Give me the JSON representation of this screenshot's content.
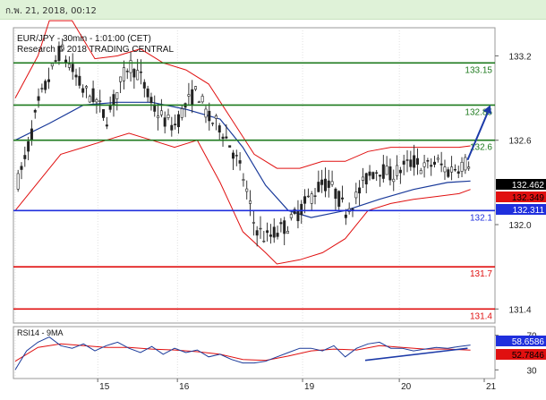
{
  "header": {
    "date_text": "ก.พ. 21, 2018, 00:12"
  },
  "colors": {
    "candles": "#222222",
    "bands": "#e01010",
    "ma": "#1a3a9a",
    "resistance": "#1e7a1e",
    "pivot": "#1f2fdd",
    "support": "#e01010",
    "arrow": "#1c3aa8",
    "rsi": "#1a3a9a",
    "rsi_ma": "#e01010",
    "grid": "#cccccc"
  },
  "chart_data": {
    "type": "candlestick",
    "symbol_line": "EUR/JPY - 30min - 1:01:00 (CET)",
    "research_line": "Research © 2018 TRADING CENTRAL",
    "x_ticks": [
      "15",
      "16",
      "19",
      "20",
      "21"
    ],
    "price_axis": {
      "ylim": [
        131.3,
        133.4
      ],
      "ticks": [
        "133.2",
        "132.6",
        "132.0",
        "131.4"
      ]
    },
    "levels": [
      {
        "label": "133.15",
        "value": 133.15,
        "kind": "resistance"
      },
      {
        "label": "132.85",
        "value": 132.85,
        "kind": "resistance"
      },
      {
        "label": "132.6",
        "value": 132.6,
        "kind": "resistance"
      },
      {
        "label": "132.1",
        "value": 132.1,
        "kind": "pivot"
      },
      {
        "label": "131.7",
        "value": 131.7,
        "kind": "support"
      },
      {
        "label": "131.4",
        "value": 131.4,
        "kind": "support"
      }
    ],
    "price_tags": [
      {
        "label": "132.462",
        "value": 132.462,
        "bg": "#000000",
        "fg": "#ffffff"
      },
      {
        "label": "132.349",
        "value": 132.349,
        "bg": "#e01010",
        "fg": "#000000"
      },
      {
        "label": "132.311",
        "value": 132.311,
        "bg": "#1f2fdd",
        "fg": "#ffffff"
      }
    ],
    "price_path": [
      [
        0,
        132.25
      ],
      [
        2,
        132.5
      ],
      [
        4,
        132.85
      ],
      [
        6,
        133.05
      ],
      [
        8,
        133.25
      ],
      [
        10,
        133.1
      ],
      [
        12,
        132.95
      ],
      [
        14,
        132.9
      ],
      [
        16,
        132.75
      ],
      [
        18,
        132.95
      ],
      [
        20,
        133.15
      ],
      [
        22,
        133.05
      ],
      [
        24,
        132.85
      ],
      [
        26,
        132.75
      ],
      [
        28,
        132.7
      ],
      [
        30,
        132.85
      ],
      [
        32,
        132.95
      ],
      [
        34,
        132.75
      ],
      [
        36,
        132.7
      ],
      [
        38,
        132.55
      ],
      [
        40,
        132.35
      ],
      [
        42,
        132.0
      ],
      [
        44,
        131.9
      ],
      [
        46,
        131.95
      ],
      [
        48,
        132.0
      ],
      [
        50,
        132.1
      ],
      [
        52,
        132.2
      ],
      [
        54,
        132.3
      ],
      [
        56,
        132.25
      ],
      [
        58,
        132.1
      ],
      [
        60,
        132.2
      ],
      [
        62,
        132.35
      ],
      [
        64,
        132.4
      ],
      [
        66,
        132.35
      ],
      [
        68,
        132.4
      ],
      [
        70,
        132.45
      ],
      [
        72,
        132.4
      ],
      [
        74,
        132.45
      ],
      [
        76,
        132.38
      ],
      [
        78,
        132.42
      ],
      [
        80,
        132.45
      ]
    ],
    "ma_path": [
      [
        0,
        132.6
      ],
      [
        6,
        132.72
      ],
      [
        12,
        132.85
      ],
      [
        18,
        132.87
      ],
      [
        24,
        132.87
      ],
      [
        30,
        132.82
      ],
      [
        36,
        132.75
      ],
      [
        40,
        132.55
      ],
      [
        44,
        132.28
      ],
      [
        48,
        132.1
      ],
      [
        52,
        132.05
      ],
      [
        58,
        132.1
      ],
      [
        64,
        132.18
      ],
      [
        70,
        132.25
      ],
      [
        76,
        132.3
      ],
      [
        80,
        132.31
      ]
    ],
    "bb_upper": [
      [
        0,
        132.9
      ],
      [
        4,
        133.2
      ],
      [
        6,
        133.45
      ],
      [
        10,
        133.45
      ],
      [
        14,
        133.18
      ],
      [
        18,
        133.2
      ],
      [
        22,
        133.25
      ],
      [
        26,
        133.15
      ],
      [
        30,
        133.1
      ],
      [
        34,
        133.0
      ],
      [
        38,
        132.75
      ],
      [
        42,
        132.5
      ],
      [
        46,
        132.4
      ],
      [
        50,
        132.4
      ],
      [
        54,
        132.45
      ],
      [
        58,
        132.45
      ],
      [
        62,
        132.52
      ],
      [
        66,
        132.55
      ],
      [
        70,
        132.55
      ],
      [
        74,
        132.55
      ],
      [
        78,
        132.55
      ],
      [
        80,
        132.56
      ]
    ],
    "bb_lower": [
      [
        0,
        132.1
      ],
      [
        4,
        132.3
      ],
      [
        8,
        132.5
      ],
      [
        12,
        132.55
      ],
      [
        16,
        132.6
      ],
      [
        20,
        132.65
      ],
      [
        24,
        132.6
      ],
      [
        28,
        132.55
      ],
      [
        32,
        132.6
      ],
      [
        36,
        132.3
      ],
      [
        40,
        131.95
      ],
      [
        44,
        131.8
      ],
      [
        46,
        131.72
      ],
      [
        50,
        131.75
      ],
      [
        54,
        131.8
      ],
      [
        58,
        131.9
      ],
      [
        62,
        132.1
      ],
      [
        66,
        132.15
      ],
      [
        70,
        132.18
      ],
      [
        74,
        132.2
      ],
      [
        78,
        132.22
      ],
      [
        80,
        132.25
      ]
    ],
    "arrow": {
      "from": [
        79.5,
        132.46
      ],
      "to": [
        83.5,
        132.85
      ]
    },
    "rsi": {
      "label": "RSI14 - 9MA",
      "ylim": [
        20,
        80
      ],
      "ticks": [
        "70",
        "30"
      ],
      "value_tags": [
        {
          "label": "58.6586",
          "value": 58.6586,
          "bg": "#1f2fdd",
          "fg": "#ffffff"
        },
        {
          "label": "52.7846",
          "value": 52.7846,
          "bg": "#e01010",
          "fg": "#000000"
        }
      ],
      "path": [
        [
          0,
          30
        ],
        [
          2,
          52
        ],
        [
          4,
          62
        ],
        [
          6,
          68
        ],
        [
          8,
          58
        ],
        [
          10,
          55
        ],
        [
          12,
          60
        ],
        [
          14,
          52
        ],
        [
          16,
          58
        ],
        [
          18,
          62
        ],
        [
          20,
          55
        ],
        [
          22,
          50
        ],
        [
          24,
          57
        ],
        [
          26,
          48
        ],
        [
          28,
          55
        ],
        [
          30,
          50
        ],
        [
          32,
          53
        ],
        [
          34,
          45
        ],
        [
          36,
          48
        ],
        [
          38,
          42
        ],
        [
          40,
          38
        ],
        [
          42,
          38
        ],
        [
          44,
          40
        ],
        [
          46,
          45
        ],
        [
          48,
          50
        ],
        [
          50,
          55
        ],
        [
          52,
          55
        ],
        [
          54,
          52
        ],
        [
          56,
          58
        ],
        [
          58,
          45
        ],
        [
          60,
          55
        ],
        [
          62,
          60
        ],
        [
          64,
          62
        ],
        [
          66,
          55
        ],
        [
          68,
          55
        ],
        [
          70,
          52
        ],
        [
          72,
          54
        ],
        [
          74,
          56
        ],
        [
          76,
          55
        ],
        [
          78,
          57
        ],
        [
          80,
          58.6586
        ]
      ],
      "ma_path": [
        [
          0,
          40
        ],
        [
          4,
          56
        ],
        [
          8,
          60
        ],
        [
          12,
          58
        ],
        [
          16,
          56
        ],
        [
          20,
          56
        ],
        [
          24,
          54
        ],
        [
          28,
          53
        ],
        [
          32,
          51
        ],
        [
          36,
          48
        ],
        [
          40,
          42
        ],
        [
          44,
          41
        ],
        [
          48,
          46
        ],
        [
          52,
          52
        ],
        [
          56,
          54
        ],
        [
          60,
          53
        ],
        [
          64,
          58
        ],
        [
          68,
          56
        ],
        [
          72,
          54
        ],
        [
          76,
          54
        ],
        [
          80,
          52.7846
        ]
      ],
      "trendline": {
        "from": [
          61.5,
          41
        ],
        "to": [
          79.5,
          55
        ]
      }
    }
  }
}
